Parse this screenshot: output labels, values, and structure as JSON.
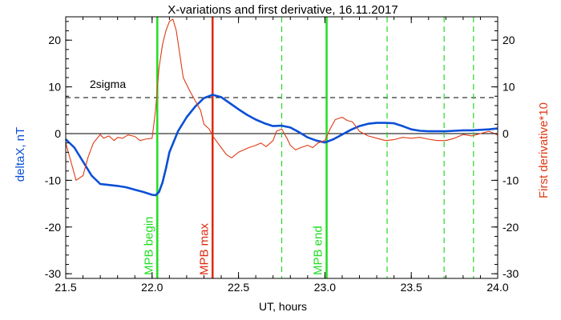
{
  "chart_data": {
    "type": "line",
    "title": "X-variations and first derivative, 16.11.2017",
    "xlabel": "UT, hours",
    "ylabel_left": "deltaX, nT",
    "ylabel_right": "First derivative*10",
    "xlim": [
      21.5,
      24.0
    ],
    "ylim": [
      -31,
      25
    ],
    "x_ticks": [
      "21.5",
      "22.0",
      "22.5",
      "23.0",
      "23.5",
      "24.0"
    ],
    "y_ticks": [
      "-30",
      "-20",
      "-10",
      "0",
      "10",
      "20"
    ],
    "sigma_line": {
      "label": "2sigma",
      "y": 7.7
    },
    "zero_line": {
      "y": 0
    },
    "series": [
      {
        "name": "deltaX, nT",
        "color": "#0a4fd6",
        "x": [
          21.5,
          21.55,
          21.6,
          21.65,
          21.7,
          21.75,
          21.8,
          21.85,
          21.9,
          21.95,
          22.0,
          22.02,
          22.04,
          22.06,
          22.08,
          22.1,
          22.15,
          22.2,
          22.25,
          22.3,
          22.35,
          22.4,
          22.45,
          22.5,
          22.55,
          22.6,
          22.65,
          22.7,
          22.75,
          22.8,
          22.85,
          22.9,
          22.95,
          23.0,
          23.05,
          23.1,
          23.15,
          23.2,
          23.25,
          23.3,
          23.35,
          23.4,
          23.45,
          23.5,
          23.55,
          23.6,
          23.65,
          23.7,
          23.75,
          23.8,
          23.85,
          23.9,
          23.95,
          24.0
        ],
        "y": [
          -1.2,
          -3.0,
          -6.0,
          -9.0,
          -10.8,
          -11.0,
          -11.2,
          -11.5,
          -12.0,
          -12.5,
          -13.1,
          -13.2,
          -12.5,
          -10.5,
          -7.5,
          -4.0,
          0.5,
          3.5,
          5.8,
          7.6,
          8.3,
          7.8,
          6.5,
          5.2,
          4.0,
          3.0,
          2.2,
          1.6,
          1.7,
          1.3,
          0.3,
          -0.8,
          -1.5,
          -1.9,
          -1.2,
          -0.2,
          0.8,
          1.6,
          2.1,
          2.3,
          2.3,
          2.2,
          1.6,
          0.9,
          0.6,
          0.5,
          0.5,
          0.5,
          0.6,
          0.7,
          0.7,
          0.8,
          0.9,
          1.1
        ]
      },
      {
        "name": "First derivative*10",
        "color": "#e03a14",
        "x": [
          21.5,
          21.53,
          21.56,
          21.6,
          21.63,
          21.66,
          21.7,
          21.72,
          21.75,
          21.78,
          21.8,
          21.83,
          21.86,
          21.9,
          21.93,
          21.96,
          22.0,
          22.02,
          22.04,
          22.06,
          22.08,
          22.1,
          22.12,
          22.14,
          22.16,
          22.18,
          22.2,
          22.22,
          22.25,
          22.28,
          22.3,
          22.33,
          22.35,
          22.38,
          22.4,
          22.43,
          22.46,
          22.5,
          22.53,
          22.56,
          22.6,
          22.63,
          22.66,
          22.7,
          22.72,
          22.75,
          22.78,
          22.8,
          22.83,
          22.86,
          22.9,
          22.93,
          22.96,
          23.0,
          23.03,
          23.06,
          23.1,
          23.13,
          23.16,
          23.2,
          23.25,
          23.3,
          23.35,
          23.4,
          23.45,
          23.5,
          23.55,
          23.6,
          23.65,
          23.7,
          23.75,
          23.8,
          23.85,
          23.9,
          23.95,
          24.0
        ],
        "y": [
          -2.0,
          -6.0,
          -10.0,
          -9.0,
          -5.0,
          -2.0,
          -0.2,
          -1.0,
          -0.5,
          -1.5,
          -0.8,
          -1.0,
          -0.3,
          -0.6,
          -1.5,
          -1.2,
          -1.0,
          5.0,
          14.0,
          19.0,
          22.0,
          24.0,
          24.5,
          22.0,
          17.0,
          12.0,
          10.5,
          9.0,
          7.0,
          5.0,
          2.0,
          1.0,
          -0.5,
          -2.0,
          -3.0,
          -4.5,
          -5.2,
          -4.0,
          -3.5,
          -3.0,
          -2.5,
          -2.0,
          -2.8,
          -1.5,
          0.5,
          1.0,
          -1.0,
          -2.5,
          -3.5,
          -3.0,
          -2.5,
          -3.0,
          -2.0,
          -1.5,
          1.0,
          3.0,
          3.5,
          2.8,
          2.5,
          0.5,
          -0.5,
          -1.0,
          -1.5,
          -1.3,
          -0.8,
          -1.0,
          -0.8,
          -1.2,
          -1.5,
          -1.5,
          -1.0,
          -0.2,
          -0.5,
          0.0,
          0.5,
          -0.3
        ]
      }
    ],
    "vlines": [
      {
        "x": 22.03,
        "color": "#22dd22",
        "style": "solid",
        "width": 2.5,
        "label": "MPB begin"
      },
      {
        "x": 22.35,
        "color": "#dd2a10",
        "style": "solid",
        "width": 2.5,
        "label": "MPB max"
      },
      {
        "x": 23.01,
        "color": "#22dd22",
        "style": "solid",
        "width": 2.5,
        "label": "MPB end"
      },
      {
        "x": 22.75,
        "color": "#22dd22",
        "style": "dashed",
        "width": 1.2,
        "label": ""
      },
      {
        "x": 23.36,
        "color": "#22dd22",
        "style": "dashed",
        "width": 1.2,
        "label": ""
      },
      {
        "x": 23.69,
        "color": "#22dd22",
        "style": "dashed",
        "width": 1.2,
        "label": ""
      },
      {
        "x": 23.86,
        "color": "#22dd22",
        "style": "dashed",
        "width": 1.2,
        "label": ""
      }
    ],
    "grid": false,
    "legend": "none"
  }
}
